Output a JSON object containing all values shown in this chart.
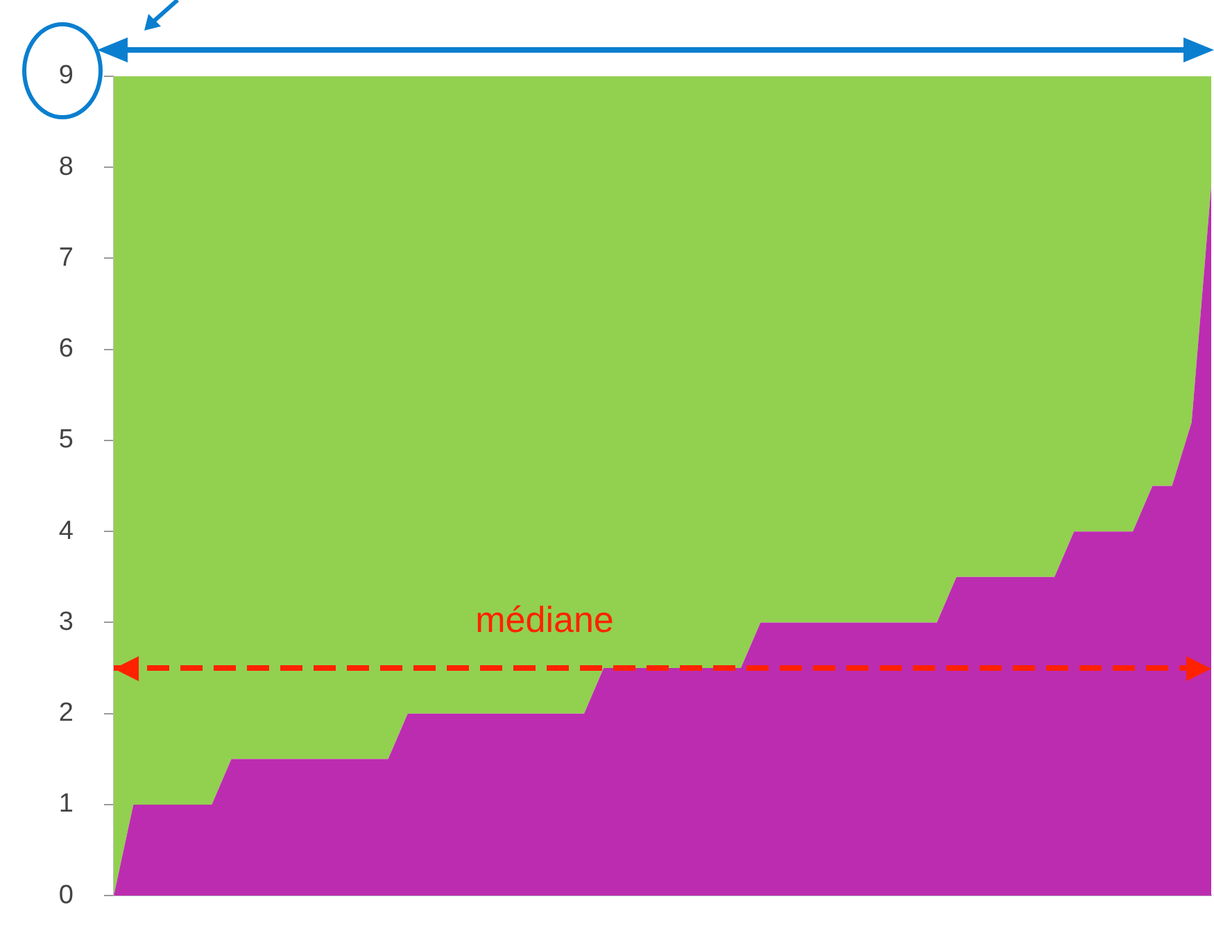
{
  "chart_data": {
    "type": "area",
    "stacked": true,
    "categories": [
      null,
      null,
      null,
      null,
      null,
      null,
      null,
      null,
      null,
      null,
      null,
      null,
      null,
      null,
      null,
      null,
      null,
      null,
      null,
      null,
      null,
      null,
      null,
      null,
      null,
      null,
      null,
      null,
      null,
      null,
      null,
      null,
      null,
      null,
      null,
      null,
      null,
      null,
      null,
      null,
      null,
      null,
      null,
      null,
      null,
      null,
      null,
      null,
      null,
      null,
      null,
      null,
      null,
      null,
      null,
      null,
      null
    ],
    "series": [
      {
        "color": "#bc2cb0",
        "values": [
          0,
          1,
          1,
          1,
          1,
          1,
          1.5,
          1.5,
          1.5,
          1.5,
          1.5,
          1.5,
          1.5,
          1.5,
          1.5,
          2,
          2,
          2,
          2,
          2,
          2,
          2,
          2,
          2,
          2,
          2.5,
          2.5,
          2.5,
          2.5,
          2.5,
          2.5,
          2.5,
          2.5,
          3,
          3,
          3,
          3,
          3,
          3,
          3,
          3,
          3,
          3,
          3.5,
          3.5,
          3.5,
          3.5,
          3.5,
          3.5,
          4,
          4,
          4,
          4,
          4.5,
          4.5,
          5.2,
          7.8
        ]
      },
      {
        "color": "#92d050",
        "values": [
          9,
          8,
          8,
          8,
          8,
          8,
          7.5,
          7.5,
          7.5,
          7.5,
          7.5,
          7.5,
          7.5,
          7.5,
          7.5,
          7,
          7,
          7,
          7,
          7,
          7,
          7,
          7,
          7,
          7,
          6.5,
          6.5,
          6.5,
          6.5,
          6.5,
          6.5,
          6.5,
          6.5,
          6,
          6,
          6,
          6,
          6,
          6,
          6,
          6,
          6,
          6,
          5.5,
          5.5,
          5.5,
          5.5,
          5.5,
          5.5,
          5,
          5,
          5,
          5,
          4.5,
          4.5,
          3.8,
          1.2
        ]
      }
    ],
    "ylim": [
      0,
      9
    ],
    "yticks": [
      0,
      1,
      2,
      3,
      4,
      5,
      6,
      7,
      8,
      9
    ],
    "tick_labels": "y",
    "grid": false,
    "legend": false,
    "ref_lines": [
      {
        "axis": "y",
        "value": 2.5,
        "label": "médiane",
        "color": "#ff2200",
        "line_style": "dashed"
      }
    ]
  }
}
